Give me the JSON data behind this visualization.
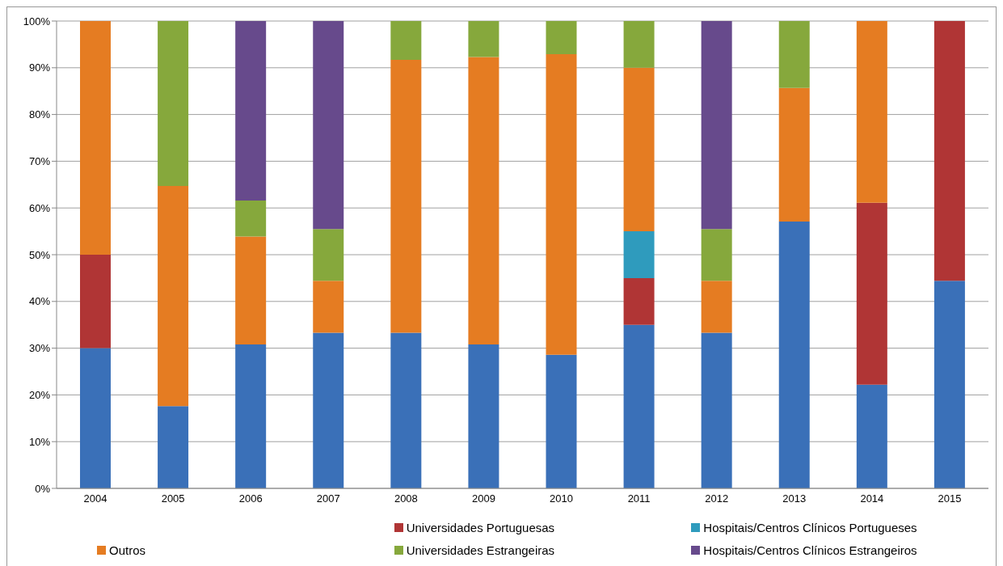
{
  "chart_data": {
    "type": "bar",
    "stacked": true,
    "categories": [
      "2004",
      "2005",
      "2006",
      "2007",
      "2008",
      "2009",
      "2010",
      "2011",
      "2012",
      "2013",
      "2014",
      "2015"
    ],
    "series": [
      {
        "color": "#3a70b8",
        "values": [
          30,
          17.6,
          30.8,
          33.3,
          33.3,
          30.8,
          28.6,
          35,
          33.3,
          57.1,
          22.2,
          44.4
        ]
      },
      {
        "name": "Universidades Portuguesas",
        "color": "#b03535",
        "values": [
          20,
          0,
          0,
          0,
          0,
          0,
          0,
          10,
          0,
          0,
          38.9,
          55.6
        ]
      },
      {
        "name": "Hospitais/Centros Clínicos Portugueses",
        "color": "#2f9bbd",
        "values": [
          0,
          0,
          0,
          0,
          0,
          0,
          0,
          10,
          0,
          0,
          0,
          0
        ]
      },
      {
        "name": "Outros",
        "color": "#e57c22",
        "values": [
          50,
          47.1,
          23.1,
          11.1,
          58.4,
          61.5,
          64.3,
          35,
          11.1,
          28.6,
          38.9,
          0
        ]
      },
      {
        "name": "Universidades Estrangeiras",
        "color": "#86a83c",
        "values": [
          0,
          35.3,
          7.7,
          11.1,
          8.3,
          7.7,
          7.1,
          10,
          11.1,
          14.3,
          0,
          0
        ]
      },
      {
        "name": "Hospitais/Centros Clínicos Estrangeiros",
        "color": "#674a8c",
        "values": [
          0,
          0,
          38.4,
          44.5,
          0,
          0,
          0,
          0,
          44.5,
          0,
          0,
          0
        ]
      }
    ],
    "ylim": [
      0,
      100
    ],
    "yticks": [
      {
        "value": 0,
        "label": "0%"
      },
      {
        "value": 10,
        "label": "10%"
      },
      {
        "value": 20,
        "label": "20%"
      },
      {
        "value": 30,
        "label": "30%"
      },
      {
        "value": 40,
        "label": "40%"
      },
      {
        "value": 50,
        "label": "50%"
      },
      {
        "value": 60,
        "label": "60%"
      },
      {
        "value": 70,
        "label": "70%"
      },
      {
        "value": 80,
        "label": "80%"
      },
      {
        "value": 90,
        "label": "90%"
      },
      {
        "value": 100,
        "label": "100%"
      }
    ],
    "grid": "y",
    "legend": "bottom"
  }
}
